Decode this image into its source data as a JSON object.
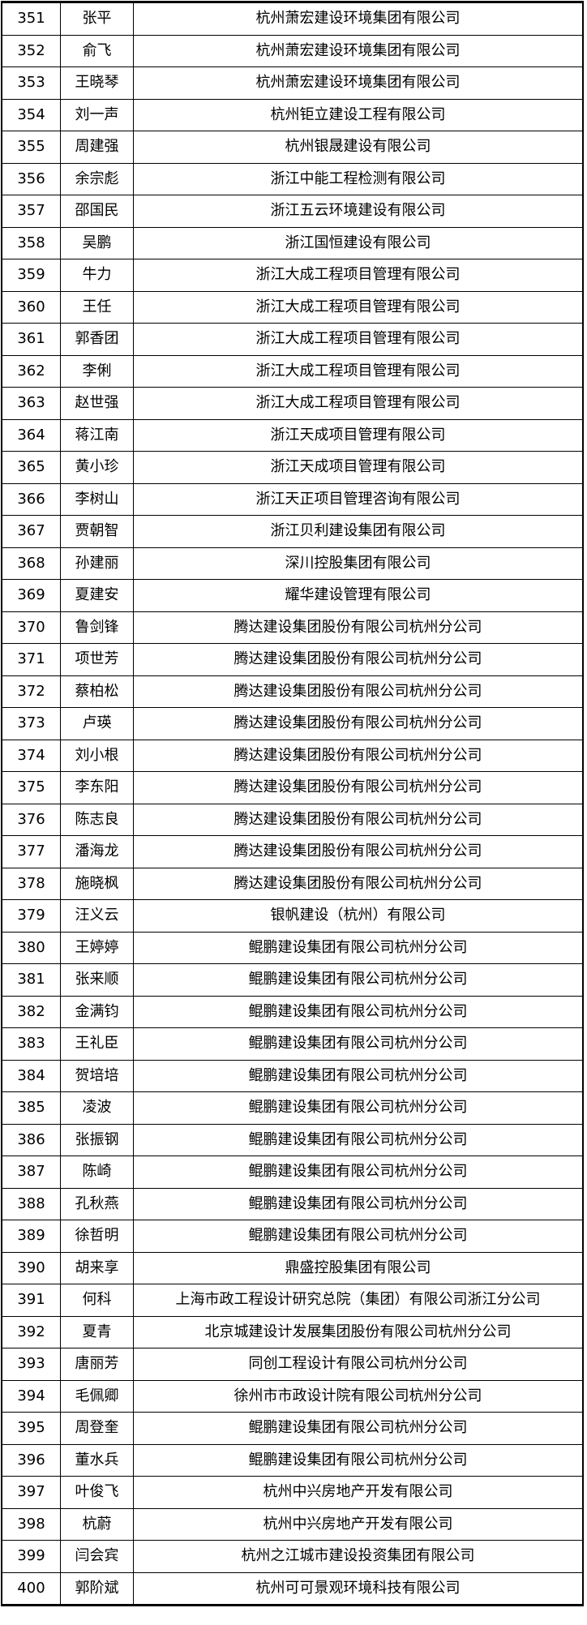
{
  "rows": [
    {
      "no": "351",
      "name": "张平",
      "company": "杭州萧宏建设环境集团有限公司"
    },
    {
      "no": "352",
      "name": "俞飞",
      "company": "杭州萧宏建设环境集团有限公司"
    },
    {
      "no": "353",
      "name": "王晓琴",
      "company": "杭州萧宏建设环境集团有限公司"
    },
    {
      "no": "354",
      "name": "刘一声",
      "company": "杭州钜立建设工程有限公司"
    },
    {
      "no": "355",
      "name": "周建强",
      "company": "杭州银晟建设有限公司"
    },
    {
      "no": "356",
      "name": "余宗彪",
      "company": "浙江中能工程检测有限公司"
    },
    {
      "no": "357",
      "name": "邵国民",
      "company": "浙江五云环境建设有限公司"
    },
    {
      "no": "358",
      "name": "吴鹏",
      "company": "浙江国恒建设有限公司"
    },
    {
      "no": "359",
      "name": "牛力",
      "company": "浙江大成工程项目管理有限公司"
    },
    {
      "no": "360",
      "name": "王任",
      "company": "浙江大成工程项目管理有限公司"
    },
    {
      "no": "361",
      "name": "郭香团",
      "company": "浙江大成工程项目管理有限公司"
    },
    {
      "no": "362",
      "name": "李俐",
      "company": "浙江大成工程项目管理有限公司"
    },
    {
      "no": "363",
      "name": "赵世强",
      "company": "浙江大成工程项目管理有限公司"
    },
    {
      "no": "364",
      "name": "蒋江南",
      "company": "浙江天成项目管理有限公司"
    },
    {
      "no": "365",
      "name": "黄小珍",
      "company": "浙江天成项目管理有限公司"
    },
    {
      "no": "366",
      "name": "李树山",
      "company": "浙江天正项目管理咨询有限公司"
    },
    {
      "no": "367",
      "name": "贾朝智",
      "company": "浙江贝利建设集团有限公司"
    },
    {
      "no": "368",
      "name": "孙建丽",
      "company": "深川控股集团有限公司"
    },
    {
      "no": "369",
      "name": "夏建安",
      "company": "耀华建设管理有限公司"
    },
    {
      "no": "370",
      "name": "鲁剑锋",
      "company": "腾达建设集团股份有限公司杭州分公司"
    },
    {
      "no": "371",
      "name": "项世芳",
      "company": "腾达建设集团股份有限公司杭州分公司"
    },
    {
      "no": "372",
      "name": "蔡柏松",
      "company": "腾达建设集团股份有限公司杭州分公司"
    },
    {
      "no": "373",
      "name": "卢瑛",
      "company": "腾达建设集团股份有限公司杭州分公司"
    },
    {
      "no": "374",
      "name": "刘小根",
      "company": "腾达建设集团股份有限公司杭州分公司"
    },
    {
      "no": "375",
      "name": "李东阳",
      "company": "腾达建设集团股份有限公司杭州分公司"
    },
    {
      "no": "376",
      "name": "陈志良",
      "company": "腾达建设集团股份有限公司杭州分公司"
    },
    {
      "no": "377",
      "name": "潘海龙",
      "company": "腾达建设集团股份有限公司杭州分公司"
    },
    {
      "no": "378",
      "name": "施晓枫",
      "company": "腾达建设集团股份有限公司杭州分公司"
    },
    {
      "no": "379",
      "name": "汪义云",
      "company": "银帆建设（杭州）有限公司"
    },
    {
      "no": "380",
      "name": "王婷婷",
      "company": "鲲鹏建设集团有限公司杭州分公司"
    },
    {
      "no": "381",
      "name": "张来顺",
      "company": "鲲鹏建设集团有限公司杭州分公司"
    },
    {
      "no": "382",
      "name": "金满钧",
      "company": "鲲鹏建设集团有限公司杭州分公司"
    },
    {
      "no": "383",
      "name": "王礼臣",
      "company": "鲲鹏建设集团有限公司杭州分公司"
    },
    {
      "no": "384",
      "name": "贺培培",
      "company": "鲲鹏建设集团有限公司杭州分公司"
    },
    {
      "no": "385",
      "name": "凌波",
      "company": "鲲鹏建设集团有限公司杭州分公司"
    },
    {
      "no": "386",
      "name": "张振钢",
      "company": "鲲鹏建设集团有限公司杭州分公司"
    },
    {
      "no": "387",
      "name": "陈崎",
      "company": "鲲鹏建设集团有限公司杭州分公司"
    },
    {
      "no": "388",
      "name": "孔秋燕",
      "company": "鲲鹏建设集团有限公司杭州分公司"
    },
    {
      "no": "389",
      "name": "徐哲明",
      "company": "鲲鹏建设集团有限公司杭州分公司"
    },
    {
      "no": "390",
      "name": "胡来享",
      "company": "鼎盛控股集团有限公司"
    },
    {
      "no": "391",
      "name": "何科",
      "company": "上海市政工程设计研究总院（集团）有限公司浙江分公司"
    },
    {
      "no": "392",
      "name": "夏青",
      "company": "北京城建设计发展集团股份有限公司杭州分公司"
    },
    {
      "no": "393",
      "name": "唐丽芳",
      "company": "同创工程设计有限公司杭州分公司"
    },
    {
      "no": "394",
      "name": "毛佩卿",
      "company": "徐州市市政设计院有限公司杭州分公司"
    },
    {
      "no": "395",
      "name": "周登奎",
      "company": "鲲鹏建设集团有限公司杭州分公司"
    },
    {
      "no": "396",
      "name": "董水兵",
      "company": "鲲鹏建设集团有限公司杭州分公司"
    },
    {
      "no": "397",
      "name": "叶俊飞",
      "company": "杭州中兴房地产开发有限公司"
    },
    {
      "no": "398",
      "name": "杭蔚",
      "company": "杭州中兴房地产开发有限公司"
    },
    {
      "no": "399",
      "name": "闫会宾",
      "company": "杭州之江城市建设投资集团有限公司"
    },
    {
      "no": "400",
      "name": "郭阶斌",
      "company": "杭州可可景观环境科技有限公司"
    }
  ]
}
